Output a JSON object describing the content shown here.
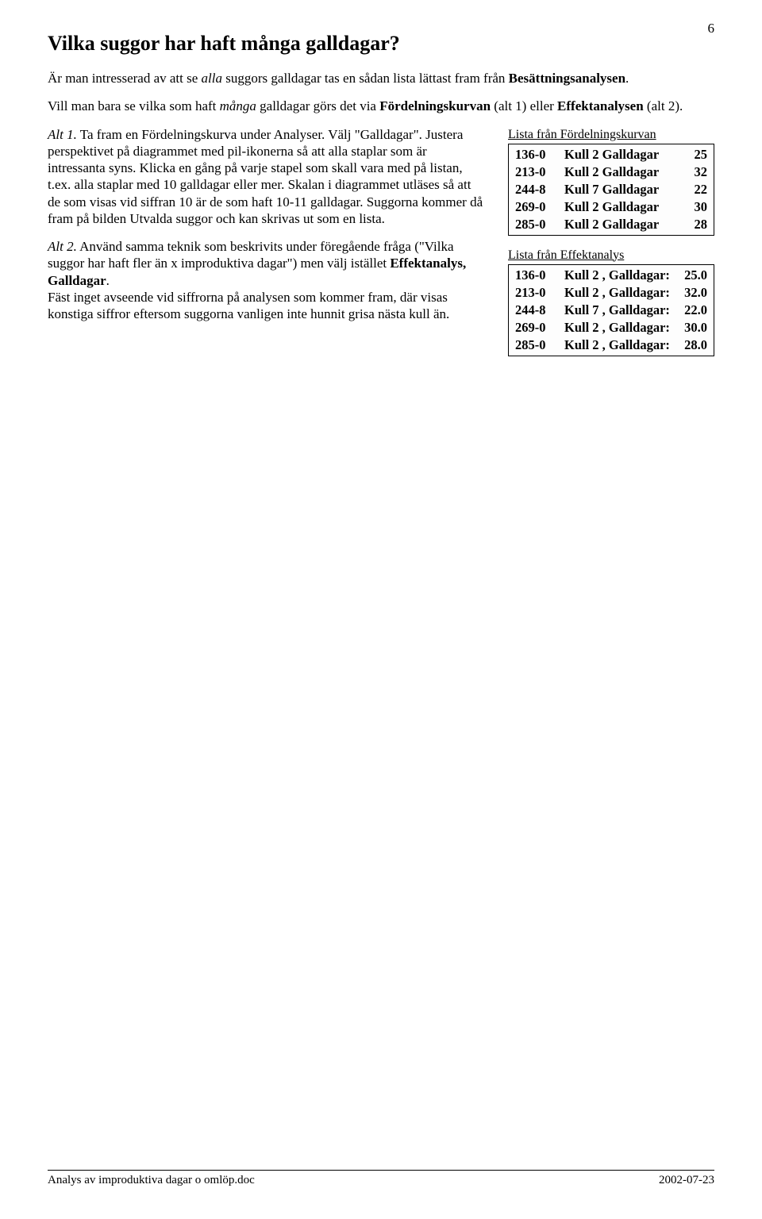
{
  "page_number": "6",
  "title": "Vilka suggor har haft många galldagar?",
  "intro_p1_a": "Är man intresserad av att se ",
  "intro_p1_b": "alla",
  "intro_p1_c": " suggors galldagar tas en sådan lista lättast fram från ",
  "intro_p1_d": "Besättningsanalysen",
  "intro_p1_e": ".",
  "intro_p2_a": "Vill man bara se vilka som haft ",
  "intro_p2_b": "många",
  "intro_p2_c": " galldagar görs det via ",
  "intro_p2_d": "Fördelningskurvan",
  "intro_p2_e": " (alt 1) eller ",
  "intro_p2_f": "Effektanalysen",
  "intro_p2_g": " (alt 2).",
  "alt1_label": "Alt 1.",
  "alt1_body": " Ta fram en Fördelningskurva under Analyser. Välj \"Galldagar\". Justera perspektivet på diagrammet med pil-ikonerna så att alla staplar som är intressanta syns. Klicka en gång på varje stapel som skall vara med på listan, t.ex. alla staplar med 10 galldagar eller mer. Skalan i diagrammet utläses så att de som visas vid siffran 10 är de som haft 10-11 galldagar. Suggorna kommer då fram på bilden Utvalda suggor och kan skrivas ut som en lista.",
  "alt2_label": "Alt 2.",
  "alt2_body_a": " Använd samma teknik som beskrivits under föregående fråga (\"Vilka suggor har haft fler än x improduktiva dagar\") men välj istället ",
  "alt2_body_b": "Effektanalys, Galldagar",
  "alt2_body_c": ".",
  "alt2_body_d": "Fäst inget avseende vid siffrorna på analysen som kommer fram, där visas konstiga siffror eftersom suggorna vanligen inte hunnit grisa nästa kull än.",
  "table1": {
    "caption": "Lista från Fördelningskurvan",
    "rows": [
      {
        "id": "136-0",
        "desc": "Kull 2 Galldagar",
        "val": "25"
      },
      {
        "id": "213-0",
        "desc": "Kull 2 Galldagar",
        "val": "32"
      },
      {
        "id": "244-8",
        "desc": "Kull 7 Galldagar",
        "val": "22"
      },
      {
        "id": "269-0",
        "desc": "Kull 2 Galldagar",
        "val": "30"
      },
      {
        "id": "285-0",
        "desc": "Kull 2 Galldagar",
        "val": "28"
      }
    ]
  },
  "table2": {
    "caption": "Lista från Effektanalys",
    "rows": [
      {
        "id": "136-0",
        "desc": "Kull 2 , Galldagar:",
        "val": "25.0"
      },
      {
        "id": "213-0",
        "desc": "Kull 2 , Galldagar:",
        "val": "32.0"
      },
      {
        "id": "244-8",
        "desc": "Kull 7 , Galldagar:",
        "val": "22.0"
      },
      {
        "id": "269-0",
        "desc": "Kull 2 , Galldagar:",
        "val": "30.0"
      },
      {
        "id": "285-0",
        "desc": "Kull 2 , Galldagar:",
        "val": "28.0"
      }
    ]
  },
  "footer_left": "Analys av improduktiva dagar o omlöp.doc",
  "footer_right": "2002-07-23"
}
